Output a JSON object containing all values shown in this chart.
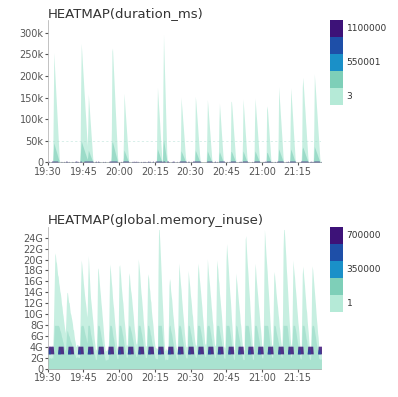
{
  "title1": "HEATMAP(duration_ms)",
  "title2": "HEATMAP(global.memory_inuse)",
  "x_ticks": [
    "19:30",
    "19:45",
    "20:00",
    "20:15",
    "20:30",
    "20:45",
    "21:00",
    "21:15"
  ],
  "x_tick_minutes": [
    0,
    15,
    30,
    45,
    60,
    75,
    90,
    105
  ],
  "total_minutes": 115,
  "yticks1_labels": [
    "0",
    "50k",
    "100k",
    "150k",
    "200k",
    "250k",
    "300k"
  ],
  "yticks1_vals": [
    0,
    50000,
    100000,
    150000,
    200000,
    250000,
    300000
  ],
  "ylim1": 330000,
  "yticks2_labels": [
    "0",
    "2G",
    "4G",
    "6G",
    "8G",
    "10G",
    "12G",
    "14G",
    "16G",
    "18G",
    "20G",
    "22G",
    "24G"
  ],
  "yticks2_vals": [
    0,
    2000000000,
    4000000000,
    6000000000,
    8000000000,
    10000000000,
    12000000000,
    14000000000,
    16000000000,
    18000000000,
    20000000000,
    22000000000,
    24000000000
  ],
  "ylim2": 26000000000,
  "legend1_vals": [
    "1100000",
    "550001",
    "3"
  ],
  "legend1_colors": [
    "#3d1278",
    "#1e4fa8",
    "#1a90c8",
    "#38c8b0",
    "#b5ead7"
  ],
  "legend2_vals": [
    "700000",
    "350000",
    "1"
  ],
  "legend2_colors": [
    "#3d1278",
    "#1e4fa8",
    "#1a90c8",
    "#38c8b0",
    "#b5ead7"
  ],
  "color_mint": "#b5ead7",
  "color_teal": "#7ecfb8",
  "color_cyan": "#40c4b0",
  "color_blue": "#1a90c8",
  "color_darkblue": "#1e4fa8",
  "color_purple": "#3d1278",
  "title_fontsize": 9.5,
  "tick_fontsize": 7,
  "legend_fontsize": 6.5
}
